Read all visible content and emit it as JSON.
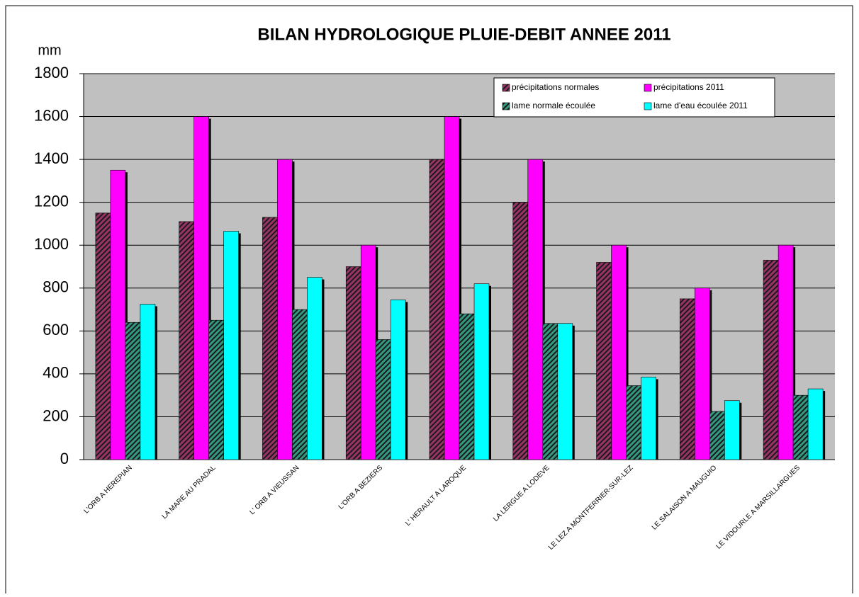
{
  "chart_data": {
    "type": "bar",
    "title": "BILAN HYDROLOGIQUE PLUIE-DEBIT ANNEE 2011",
    "y_label": "mm",
    "categories": [
      "L'ORB A HEREPIAN",
      "LA MARE AU PRADAL",
      "L' ORB A VIEUSSAN",
      "L'ORB A BEZIERS",
      "L' HERAULT A LAROQUE",
      "LA LERGUE A LODEVE",
      "LE LEZ A MONTFERRIER-SUR-LEZ",
      "LE SALAISON A MAUGUIO",
      "LE VIDOURLE A MARSILLARGUES"
    ],
    "series": [
      {
        "name": "précipitations normales",
        "color": "#993366",
        "hatched": true,
        "values": [
          1150,
          1110,
          1130,
          900,
          1400,
          1200,
          920,
          750,
          930
        ]
      },
      {
        "name": "précipitations 2011",
        "color": "#ff00ff",
        "hatched": false,
        "values": [
          1350,
          1600,
          1400,
          1000,
          1600,
          1400,
          1000,
          800,
          1000
        ]
      },
      {
        "name": "lame normale écoulée",
        "color": "#339980",
        "hatched": true,
        "values": [
          640,
          650,
          700,
          560,
          680,
          635,
          345,
          225,
          300
        ]
      },
      {
        "name": "lame d'eau écoulée 2011",
        "color": "#00ffff",
        "hatched": false,
        "values": [
          725,
          1065,
          850,
          745,
          820,
          635,
          385,
          275,
          330
        ]
      }
    ],
    "ylim": [
      0,
      1800
    ],
    "yticks": [
      0,
      200,
      400,
      600,
      800,
      1000,
      1200,
      1400,
      1600,
      1800
    ],
    "grid": true,
    "legend": "top-right",
    "plot_background": "#c0c0c0"
  }
}
